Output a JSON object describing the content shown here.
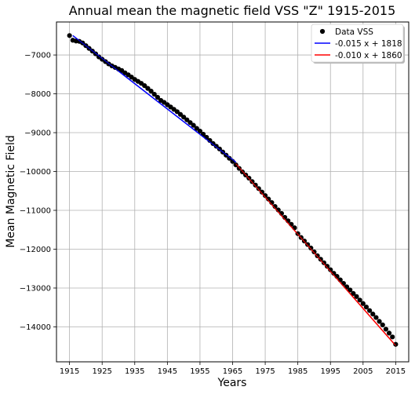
{
  "chart_data": {
    "type": "scatter",
    "title": "Annual mean the magnetic field VSS \"Z\" 1915-2015",
    "xlabel": "Years",
    "ylabel": "Mean Magnetic Field",
    "xlim": [
      1911,
      2019
    ],
    "ylim": [
      -14900,
      -6150
    ],
    "xticks": [
      1915,
      1925,
      1935,
      1945,
      1955,
      1965,
      1975,
      1985,
      1995,
      2005,
      2015
    ],
    "yticks": [
      -7000,
      -8000,
      -9000,
      -10000,
      -11000,
      -12000,
      -13000,
      -14000,
      -15000
    ],
    "grid": true,
    "legend_position": "top-right",
    "series": [
      {
        "name": "Data VSS",
        "kind": "points",
        "color": "#000000",
        "x": [
          1915,
          1916,
          1917,
          1918,
          1919,
          1920,
          1921,
          1922,
          1923,
          1924,
          1925,
          1926,
          1927,
          1928,
          1929,
          1930,
          1931,
          1932,
          1933,
          1934,
          1935,
          1936,
          1937,
          1938,
          1939,
          1940,
          1941,
          1942,
          1943,
          1944,
          1945,
          1946,
          1947,
          1948,
          1949,
          1950,
          1951,
          1952,
          1953,
          1954,
          1955,
          1956,
          1957,
          1958,
          1959,
          1960,
          1961,
          1962,
          1963,
          1964,
          1965,
          1966,
          1967,
          1968,
          1969,
          1970,
          1971,
          1972,
          1973,
          1974,
          1975,
          1976,
          1977,
          1978,
          1979,
          1980,
          1981,
          1982,
          1983,
          1984,
          1985,
          1986,
          1987,
          1988,
          1989,
          1990,
          1991,
          1992,
          1993,
          1994,
          1995,
          1996,
          1997,
          1998,
          1999,
          2000,
          2001,
          2002,
          2003,
          2004,
          2005,
          2006,
          2007,
          2008,
          2009,
          2010,
          2011,
          2012,
          2013,
          2014,
          2015
        ],
        "y": [
          -6500,
          -6620,
          -6640,
          -6650,
          -6690,
          -6760,
          -6830,
          -6900,
          -6970,
          -7050,
          -7110,
          -7170,
          -7230,
          -7280,
          -7320,
          -7360,
          -7400,
          -7460,
          -7510,
          -7570,
          -7630,
          -7680,
          -7730,
          -7790,
          -7860,
          -7930,
          -8010,
          -8090,
          -8170,
          -8220,
          -8280,
          -8340,
          -8400,
          -8460,
          -8530,
          -8600,
          -8670,
          -8740,
          -8810,
          -8890,
          -8960,
          -9040,
          -9120,
          -9200,
          -9280,
          -9350,
          -9420,
          -9500,
          -9580,
          -9660,
          -9740,
          -9830,
          -9920,
          -10010,
          -10090,
          -10170,
          -10260,
          -10350,
          -10440,
          -10530,
          -10620,
          -10710,
          -10800,
          -10900,
          -10990,
          -11080,
          -11180,
          -11270,
          -11360,
          -11450,
          -11600,
          -11700,
          -11790,
          -11880,
          -11970,
          -12070,
          -12170,
          -12260,
          -12350,
          -12440,
          -12530,
          -12620,
          -12700,
          -12790,
          -12880,
          -12970,
          -13050,
          -13140,
          -13220,
          -13310,
          -13400,
          -13490,
          -13580,
          -13670,
          -13760,
          -13860,
          -13950,
          -14060,
          -14160,
          -14260,
          -14450
        ]
      },
      {
        "name": "-0.015 x + 1818",
        "kind": "line",
        "color": "#0000ff",
        "x": [
          1916,
          1966
        ],
        "y": [
          -6500,
          -9760
        ]
      },
      {
        "name": "-0.010 x + 1860",
        "kind": "line",
        "color": "#ff0000",
        "x": [
          1966,
          2015
        ],
        "y": [
          -9800,
          -14480
        ]
      }
    ]
  }
}
